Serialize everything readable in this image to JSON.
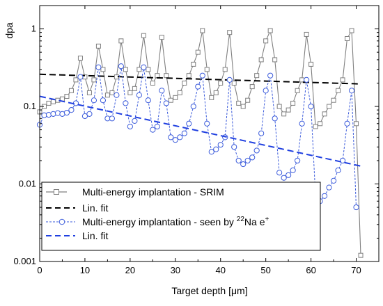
{
  "chart_data": {
    "type": "line",
    "xlabel": "Target depth [μm]",
    "ylabel": "dpa",
    "xlim": [
      0,
      75
    ],
    "ylim": [
      0.001,
      2
    ],
    "yscale": "log",
    "x_ticks": [
      "0",
      "10",
      "20",
      "30",
      "40",
      "50",
      "60",
      "70"
    ],
    "y_ticks": [
      "0.001",
      "0.01",
      "0.1",
      "1"
    ],
    "grid": false,
    "legend_position": "bottom-left",
    "colors": {
      "srim": "#7f7f7f",
      "positron": "#3b5bdb",
      "fit_black": "#000000",
      "fit_blue": "#1f3fe0"
    },
    "series": [
      {
        "name": "Multi-energy implantation - SRIM",
        "style": "solid",
        "marker": "square",
        "x": [
          0,
          1,
          2,
          3,
          4,
          5,
          6,
          7,
          8,
          9,
          10,
          11,
          12,
          13,
          14,
          15,
          16,
          17,
          18,
          19,
          20,
          21,
          22,
          23,
          24,
          25,
          26,
          27,
          28,
          29,
          30,
          31,
          32,
          33,
          34,
          35,
          36,
          37,
          38,
          39,
          40,
          41,
          42,
          43,
          44,
          45,
          46,
          47,
          48,
          49,
          50,
          51,
          52,
          53,
          54,
          55,
          56,
          57,
          58,
          59,
          60,
          61,
          62,
          63,
          64,
          65,
          66,
          67,
          68,
          69,
          70,
          71
        ],
        "values": [
          0.085,
          0.1,
          0.11,
          0.115,
          0.12,
          0.125,
          0.135,
          0.16,
          0.22,
          0.42,
          0.24,
          0.15,
          0.22,
          0.6,
          0.3,
          0.14,
          0.15,
          0.24,
          0.7,
          0.3,
          0.15,
          0.17,
          0.3,
          0.82,
          0.3,
          0.2,
          0.25,
          0.78,
          0.25,
          0.12,
          0.13,
          0.15,
          0.2,
          0.25,
          0.35,
          0.5,
          0.95,
          0.3,
          0.13,
          0.15,
          0.2,
          0.3,
          0.9,
          0.2,
          0.11,
          0.1,
          0.12,
          0.18,
          0.25,
          0.4,
          0.7,
          0.95,
          0.4,
          0.1,
          0.08,
          0.09,
          0.11,
          0.16,
          0.22,
          0.85,
          0.35,
          0.055,
          0.06,
          0.08,
          0.1,
          0.12,
          0.16,
          0.22,
          0.75,
          0.95,
          0.06,
          0.0012
        ]
      },
      {
        "name": "Lin. fit",
        "style": "dashed",
        "x": [
          0,
          71
        ],
        "values": [
          0.26,
          0.195
        ]
      },
      {
        "name": "Multi-energy implantation - seen by 22Na e+",
        "style": "dashed",
        "marker": "circle",
        "x": [
          0,
          1,
          2,
          3,
          4,
          5,
          6,
          7,
          8,
          9,
          10,
          11,
          12,
          13,
          14,
          15,
          16,
          17,
          18,
          19,
          20,
          21,
          22,
          23,
          24,
          25,
          26,
          27,
          28,
          29,
          30,
          31,
          32,
          33,
          34,
          35,
          36,
          37,
          38,
          39,
          40,
          41,
          42,
          43,
          44,
          45,
          46,
          47,
          48,
          49,
          50,
          51,
          52,
          53,
          54,
          55,
          56,
          57,
          58,
          59,
          60,
          61,
          62,
          63,
          64,
          65,
          66,
          67,
          68,
          69,
          70
        ],
        "values": [
          0.058,
          0.077,
          0.078,
          0.08,
          0.082,
          0.08,
          0.083,
          0.09,
          0.11,
          0.24,
          0.075,
          0.08,
          0.12,
          0.32,
          0.12,
          0.07,
          0.07,
          0.14,
          0.33,
          0.11,
          0.055,
          0.065,
          0.14,
          0.32,
          0.12,
          0.05,
          0.055,
          0.16,
          0.11,
          0.04,
          0.037,
          0.04,
          0.045,
          0.06,
          0.1,
          0.18,
          0.25,
          0.06,
          0.026,
          0.028,
          0.032,
          0.04,
          0.22,
          0.03,
          0.02,
          0.018,
          0.02,
          0.022,
          0.027,
          0.045,
          0.16,
          0.25,
          0.07,
          0.014,
          0.012,
          0.013,
          0.015,
          0.02,
          0.06,
          0.22,
          0.1,
          0.007,
          0.006,
          0.007,
          0.009,
          0.011,
          0.015,
          0.02,
          0.06,
          0.16,
          0.005
        ]
      },
      {
        "name": "Lin. fit",
        "style": "dashed",
        "x": [
          0,
          71
        ],
        "values": [
          0.135,
          0.017
        ]
      }
    ],
    "legend": [
      {
        "label": "Multi-energy implantation - SRIM",
        "series": 0
      },
      {
        "label": "Lin. fit",
        "series": 1
      },
      {
        "label_prefix": "Multi-energy implantation - seen by ",
        "sup1": "22",
        "label_mid": "Na e",
        "sup2": "+",
        "series": 2
      },
      {
        "label": "Lin. fit",
        "series": 3
      }
    ]
  }
}
